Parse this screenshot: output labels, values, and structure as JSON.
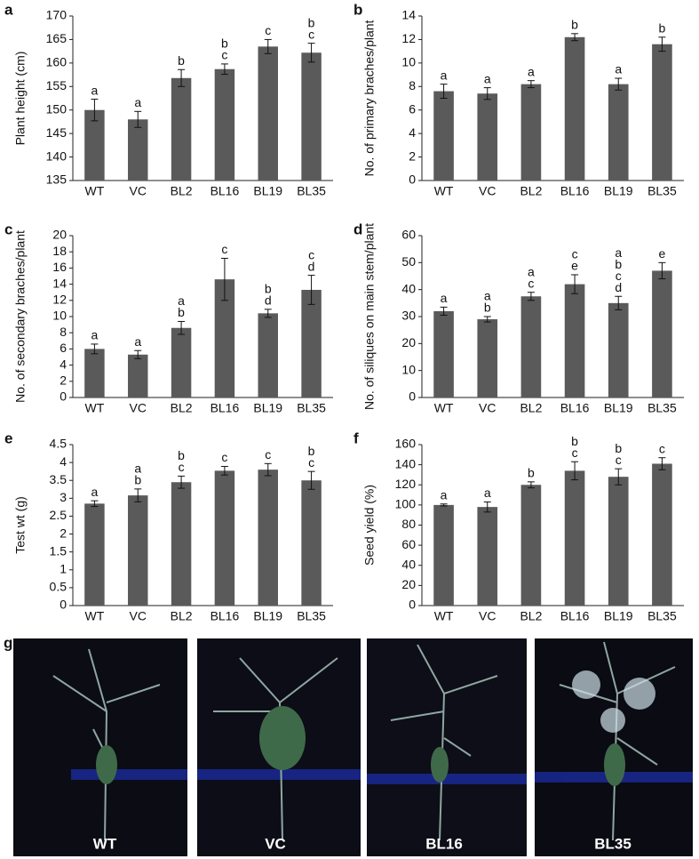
{
  "chart_data": [
    {
      "type": "bar",
      "panel": "a",
      "y_label": "Plant height (cm)",
      "categories": [
        "WT",
        "VC",
        "BL2",
        "BL16",
        "BL19",
        "BL35"
      ],
      "values": [
        150,
        148,
        156.8,
        158.7,
        163.5,
        162.2
      ],
      "errors": [
        2.3,
        1.7,
        1.8,
        1.1,
        1.5,
        2
      ],
      "letters": [
        [
          "a"
        ],
        [
          "a"
        ],
        [
          "b"
        ],
        [
          "b",
          "c"
        ],
        [
          "c"
        ],
        [
          "b",
          "c"
        ]
      ],
      "color": "#5a5a5a",
      "ylim": [
        135,
        170
      ],
      "yticks": [
        135,
        140,
        145,
        150,
        155,
        160,
        165,
        170
      ]
    },
    {
      "type": "bar",
      "panel": "b",
      "y_label": "No. of primary braches/plant",
      "categories": [
        "WT",
        "VC",
        "BL2",
        "BL16",
        "BL19",
        "BL35"
      ],
      "values": [
        7.6,
        7.4,
        8.2,
        12.2,
        8.2,
        11.6
      ],
      "errors": [
        0.6,
        0.5,
        0.3,
        0.3,
        0.5,
        0.6
      ],
      "letters": [
        [
          "a"
        ],
        [
          "a"
        ],
        [
          "a"
        ],
        [
          "b"
        ],
        [
          "a"
        ],
        [
          "b"
        ]
      ],
      "color": "#5a5a5a",
      "ylim": [
        0,
        14
      ],
      "yticks": [
        0,
        2,
        4,
        6,
        8,
        10,
        12,
        14
      ]
    },
    {
      "type": "bar",
      "panel": "c",
      "y_label": "No. of secondary braches/plant",
      "categories": [
        "WT",
        "VC",
        "BL2",
        "BL16",
        "BL19",
        "BL35"
      ],
      "values": [
        6.0,
        5.3,
        8.6,
        14.6,
        10.4,
        13.3
      ],
      "errors": [
        0.6,
        0.5,
        0.8,
        2.6,
        0.5,
        1.8
      ],
      "letters": [
        [
          "a"
        ],
        [
          "a"
        ],
        [
          "a",
          "b"
        ],
        [
          "c"
        ],
        [
          "b",
          "d"
        ],
        [
          "c",
          "d"
        ]
      ],
      "color": "#5a5a5a",
      "ylim": [
        0,
        20
      ],
      "yticks": [
        0,
        2,
        4,
        6,
        8,
        10,
        12,
        14,
        16,
        18,
        20
      ]
    },
    {
      "type": "bar",
      "panel": "d",
      "y_label": "No. of siliques on main stem/plant",
      "categories": [
        "WT",
        "VC",
        "BL2",
        "BL16",
        "BL19",
        "BL35"
      ],
      "values": [
        32,
        29,
        37.5,
        42,
        35,
        47
      ],
      "errors": [
        1.5,
        1,
        1.5,
        3.5,
        2.5,
        3
      ],
      "letters": [
        [
          "a"
        ],
        [
          "a",
          "b"
        ],
        [
          "a",
          "c"
        ],
        [
          "c",
          "e"
        ],
        [
          "a",
          "b",
          "c",
          "d"
        ],
        [
          "e"
        ]
      ],
      "color": "#5a5a5a",
      "ylim": [
        0,
        60
      ],
      "yticks": [
        0,
        10,
        20,
        30,
        40,
        50,
        60
      ]
    },
    {
      "type": "bar",
      "panel": "e",
      "y_label": "Test wt (g)",
      "categories": [
        "WT",
        "VC",
        "BL2",
        "BL16",
        "BL19",
        "BL35"
      ],
      "values": [
        2.85,
        3.08,
        3.45,
        3.77,
        3.8,
        3.5
      ],
      "errors": [
        0.08,
        0.18,
        0.17,
        0.12,
        0.17,
        0.25
      ],
      "letters": [
        [
          "a"
        ],
        [
          "a",
          "b"
        ],
        [
          "b",
          "c"
        ],
        [
          "c"
        ],
        [
          "c"
        ],
        [
          "b",
          "c"
        ]
      ],
      "color": "#5a5a5a",
      "ylim": [
        0,
        4.5
      ],
      "yticks": [
        0,
        0.5,
        1,
        1.5,
        2,
        2.5,
        3,
        3.5,
        4,
        4.5
      ]
    },
    {
      "type": "bar",
      "panel": "f",
      "y_label": "Seed yield (%)",
      "categories": [
        "WT",
        "VC",
        "BL2",
        "BL16",
        "BL19",
        "BL35"
      ],
      "values": [
        100,
        98,
        120,
        134,
        128,
        141
      ],
      "errors": [
        1,
        5,
        3,
        9,
        8,
        6
      ],
      "letters": [
        [
          "a"
        ],
        [
          "a"
        ],
        [
          "b"
        ],
        [
          "b",
          "c"
        ],
        [
          "b",
          "c"
        ],
        [
          "c"
        ]
      ],
      "color": "#5a5a5a",
      "ylim": [
        0,
        160
      ],
      "yticks": [
        0,
        20,
        40,
        60,
        80,
        100,
        120,
        140,
        160
      ]
    }
  ],
  "photo_panel": {
    "panel": "g",
    "labels": [
      "WT",
      "VC",
      "BL16",
      "BL35"
    ]
  }
}
